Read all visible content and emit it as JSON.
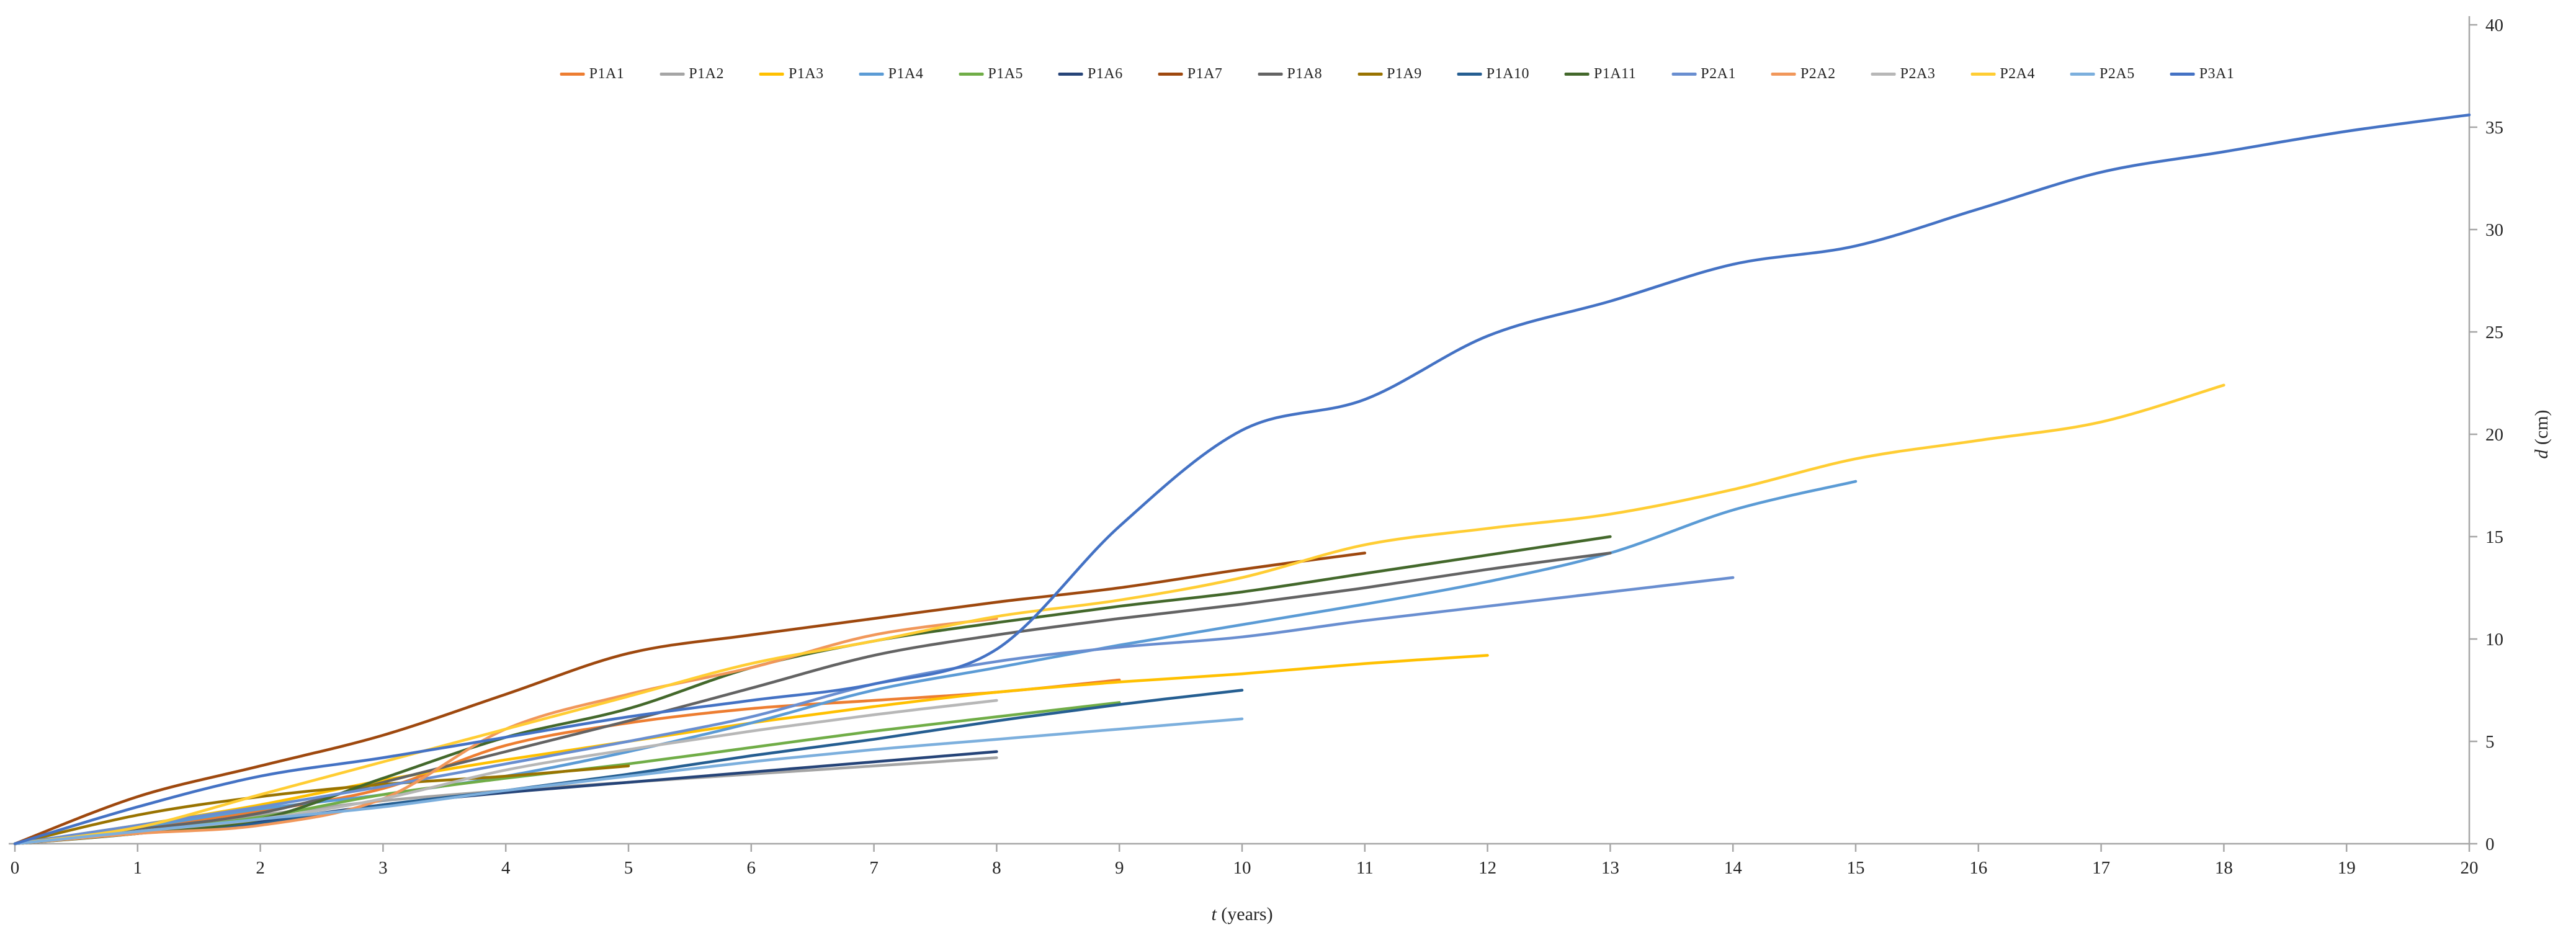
{
  "chart_data": {
    "type": "line",
    "title": "",
    "xlabel": {
      "var": "t",
      "rest": " (years)"
    },
    "ylabel": {
      "var": "d",
      "rest": " (cm)"
    },
    "xlim": [
      0,
      20
    ],
    "ylim": [
      0,
      40
    ],
    "xtick_step": 1,
    "ytick_step": 5,
    "grid": false,
    "legend_position": "top",
    "y_axis_side": "right",
    "axis_color": "#A6A6A6",
    "text_color": "#262626",
    "line_width": 4.5,
    "series": [
      {
        "name": "P1A1",
        "color": "#ED7D31",
        "x_start": 0,
        "x_step": 1,
        "values": [
          0,
          0.8,
          1.6,
          2.7,
          4.8,
          5.9,
          6.6,
          7.0,
          7.4,
          8.0
        ]
      },
      {
        "name": "P1A2",
        "color": "#A5A5A5",
        "x_start": 0,
        "x_step": 1,
        "values": [
          0,
          0.7,
          1.4,
          2.1,
          2.6,
          3.0,
          3.4,
          3.8,
          4.2
        ]
      },
      {
        "name": "P1A3",
        "color": "#FFC000",
        "x_start": 0,
        "x_step": 1,
        "values": [
          0,
          0.9,
          1.9,
          3.1,
          4.1,
          5.0,
          5.9,
          6.7,
          7.4,
          7.9,
          8.3,
          8.8,
          9.2
        ]
      },
      {
        "name": "P1A4",
        "color": "#5B9BD5",
        "x_start": 0,
        "x_step": 1,
        "values": [
          0,
          0.8,
          1.7,
          2.4,
          3.3,
          4.5,
          5.9,
          7.5,
          8.6,
          9.7,
          10.7,
          11.7,
          12.8,
          14.2,
          16.3,
          17.7
        ]
      },
      {
        "name": "P1A5",
        "color": "#70AD47",
        "x_start": 0,
        "x_step": 1,
        "values": [
          0,
          0.6,
          1.3,
          2.4,
          3.2,
          3.9,
          4.7,
          5.5,
          6.2,
          6.9
        ]
      },
      {
        "name": "P1A6",
        "color": "#264478",
        "x_start": 0,
        "x_step": 1,
        "values": [
          0,
          0.5,
          1.1,
          1.9,
          2.5,
          3.0,
          3.5,
          4.0,
          4.5
        ]
      },
      {
        "name": "P1A7",
        "color": "#9E480E",
        "x_start": 0,
        "x_step": 1,
        "values": [
          0,
          2.3,
          3.8,
          5.3,
          7.3,
          9.3,
          10.2,
          11.0,
          11.8,
          12.5,
          13.4,
          14.2
        ]
      },
      {
        "name": "P1A8",
        "color": "#636363",
        "x_start": 0,
        "x_step": 1,
        "values": [
          0,
          0.7,
          1.5,
          3.0,
          4.5,
          6.0,
          7.6,
          9.2,
          10.2,
          11.0,
          11.7,
          12.5,
          13.4,
          14.2
        ]
      },
      {
        "name": "P1A9",
        "color": "#997300",
        "x_start": 0,
        "x_step": 1,
        "values": [
          0,
          1.4,
          2.3,
          2.9,
          3.3,
          3.8
        ]
      },
      {
        "name": "P1A10",
        "color": "#255E91",
        "x_start": 0,
        "x_step": 1,
        "values": [
          0,
          0.5,
          1.0,
          1.9,
          2.6,
          3.4,
          4.3,
          5.1,
          6.0,
          6.8,
          7.5
        ]
      },
      {
        "name": "P1A11",
        "color": "#43682B",
        "x_start": 0,
        "x_step": 1,
        "values": [
          0,
          0.5,
          1.2,
          3.2,
          5.2,
          6.6,
          8.6,
          9.9,
          10.8,
          11.6,
          12.3,
          13.2,
          14.1,
          15.0
        ]
      },
      {
        "name": "P2A1",
        "color": "#698ED0",
        "x_start": 0,
        "x_step": 1,
        "values": [
          0,
          0.9,
          1.8,
          2.8,
          3.9,
          5.0,
          6.2,
          7.8,
          8.9,
          9.6,
          10.1,
          10.9,
          11.6,
          12.3,
          13.0
        ]
      },
      {
        "name": "P2A2",
        "color": "#F1975A",
        "x_start": 0,
        "x_step": 1,
        "values": [
          0,
          0.5,
          0.9,
          2.2,
          5.6,
          7.3,
          8.6,
          10.2,
          11.0
        ]
      },
      {
        "name": "P2A3",
        "color": "#B7B7B7",
        "x_start": 0,
        "x_step": 1,
        "values": [
          0,
          0.6,
          1.2,
          2.2,
          3.6,
          4.6,
          5.5,
          6.3,
          7.0
        ]
      },
      {
        "name": "P2A4",
        "color": "#FFCD33",
        "x_start": 0,
        "x_step": 1,
        "values": [
          0,
          0.8,
          2.4,
          4.0,
          5.6,
          7.2,
          8.8,
          9.9,
          11.1,
          11.9,
          13.0,
          14.6,
          15.4,
          16.1,
          17.3,
          18.8,
          19.7,
          20.6,
          22.4
        ]
      },
      {
        "name": "P2A5",
        "color": "#7CAFDD",
        "x_start": 0,
        "x_step": 1,
        "values": [
          0,
          0.6,
          1.2,
          1.8,
          2.6,
          3.3,
          4.0,
          4.6,
          5.1,
          5.6,
          6.1
        ]
      },
      {
        "name": "P3A1",
        "color": "#4472C4",
        "x_start": 0,
        "x_step": 1,
        "values": [
          0,
          1.8,
          3.3,
          4.2,
          5.2,
          6.2,
          7.0,
          7.8,
          9.5,
          15.5,
          20.2,
          21.7,
          24.8,
          26.5,
          28.3,
          29.2,
          31.0,
          32.8,
          33.8,
          34.8,
          35.6
        ]
      }
    ],
    "x_tick_labels": [
      "0",
      "1",
      "2",
      "3",
      "4",
      "5",
      "6",
      "7",
      "8",
      "9",
      "10",
      "11",
      "12",
      "13",
      "14",
      "15",
      "16",
      "17",
      "18",
      "19",
      "20"
    ],
    "y_tick_labels": [
      "0",
      "5",
      "10",
      "15",
      "20",
      "25",
      "30",
      "35",
      "40"
    ]
  },
  "layout_note": "line chart, no gridlines, legend single row on top, y axis on right"
}
